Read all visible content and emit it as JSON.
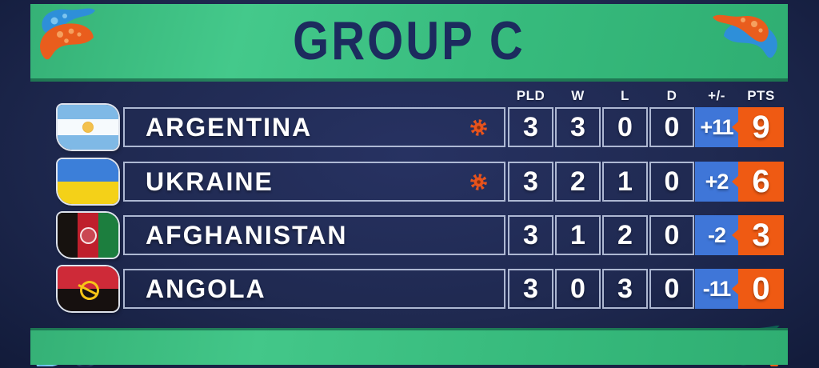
{
  "banner": {
    "title": "GROUP C"
  },
  "table": {
    "headers": [
      "PLD",
      "W",
      "L",
      "D",
      "+/-",
      "PTS"
    ],
    "rows": [
      {
        "team": "ARGENTINA",
        "flag": "argentina",
        "qualified": true,
        "stats": [
          "3",
          "3",
          "0",
          "0"
        ],
        "diff": "+11",
        "pts": "9"
      },
      {
        "team": "UKRAINE",
        "flag": "ukraine",
        "qualified": true,
        "stats": [
          "3",
          "2",
          "1",
          "0"
        ],
        "diff": "+2",
        "pts": "6"
      },
      {
        "team": "AFGHANISTAN",
        "flag": "afghanistan",
        "qualified": false,
        "stats": [
          "3",
          "1",
          "2",
          "0"
        ],
        "diff": "-2",
        "pts": "3"
      },
      {
        "team": "ANGOLA",
        "flag": "angola",
        "qualified": false,
        "stats": [
          "3",
          "0",
          "3",
          "0"
        ],
        "diff": "-11",
        "pts": "0"
      }
    ]
  },
  "colors": {
    "banner_green": "#3cbd7f",
    "diff_blue": "#3f76d8",
    "points_orange": "#ef5a13",
    "background_navy": "#1f2950",
    "title_navy": "#1c2b5e",
    "paisley_orange": "#e95d1d",
    "paisley_blue": "#2e8fd9"
  },
  "icons": {
    "qualified_indicator": "gear-icon",
    "decorations": [
      "paisley-top-left",
      "paisley-top-right",
      "paisley-bottom-left",
      "paisley-bottom-right"
    ]
  }
}
